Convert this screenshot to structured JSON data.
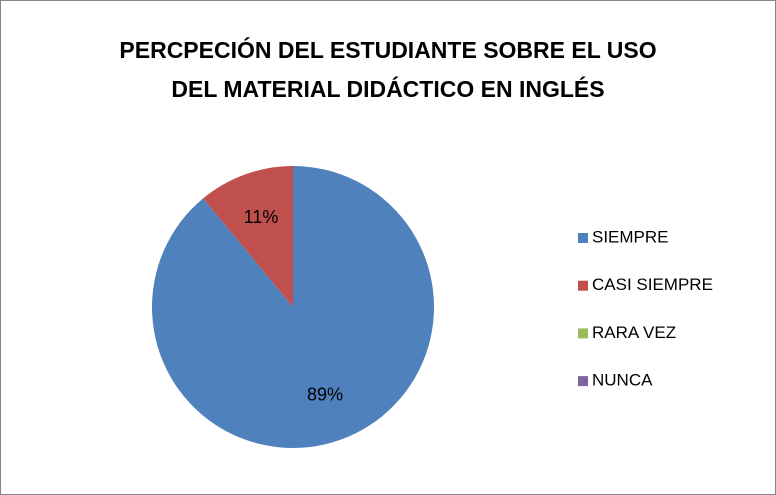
{
  "chart_data": {
    "type": "pie",
    "title": [
      "PERCPECIÓN DEL ESTUDIANTE SOBRE EL USO",
      "DEL MATERIAL DIDÁCTICO EN INGLÉS"
    ],
    "categories": [
      "SIEMPRE",
      "CASI SIEMPRE",
      "RARA VEZ",
      "NUNCA"
    ],
    "values": [
      89,
      11,
      0,
      0
    ],
    "value_labels": [
      "89%",
      "11%",
      null,
      null
    ],
    "colors": [
      "#4f81bd",
      "#c0504d",
      "#9bbb59",
      "#8064a2"
    ],
    "legend": "right"
  }
}
